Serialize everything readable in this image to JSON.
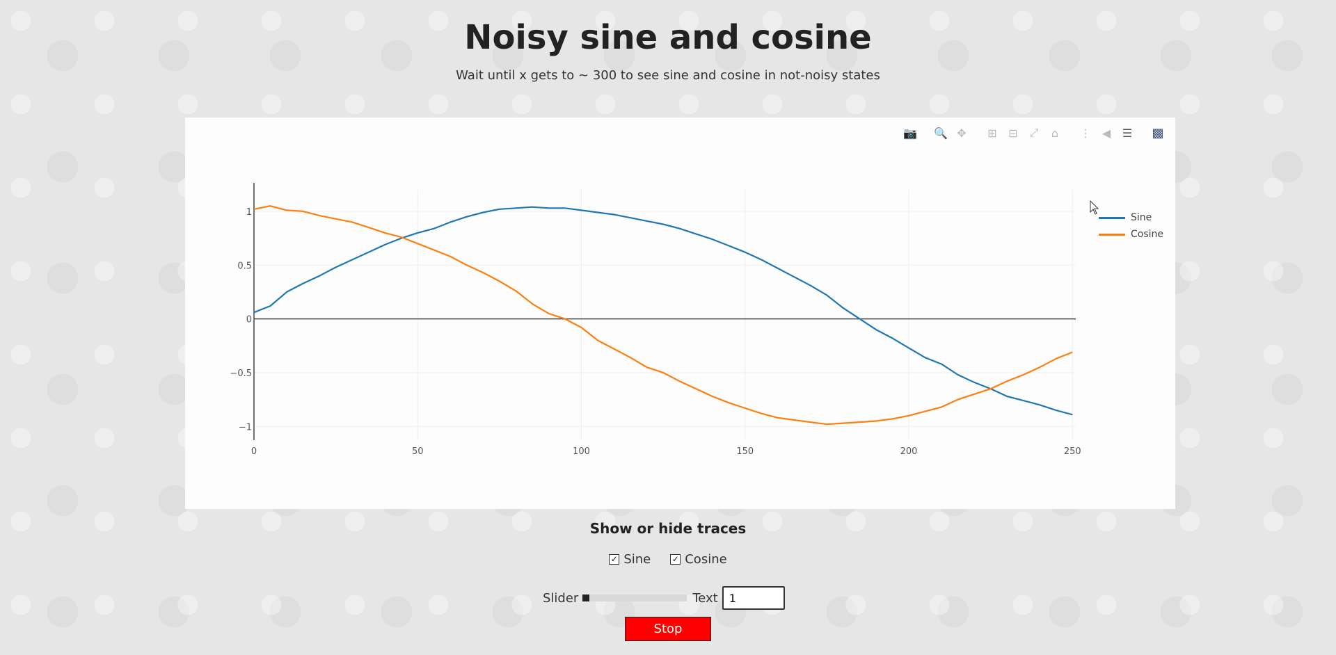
{
  "page": {
    "title": "Noisy sine and cosine",
    "subtitle": "Wait until x gets to ~ 300 to see sine and cosine in not-noisy states"
  },
  "modebar": {
    "icons": [
      "camera-icon",
      "zoom-icon",
      "pan-icon",
      "zoom-in-icon",
      "zoom-out-icon",
      "autoscale-icon",
      "reset-axes-icon",
      "spike-lines-icon",
      "hover-closest-icon",
      "hover-compare-icon",
      "plotly-logo-icon"
    ]
  },
  "chart_data": {
    "type": "line",
    "title": "",
    "xlabel": "",
    "ylabel": "",
    "xlim": [
      0,
      251
    ],
    "ylim": [
      -1.05,
      1.2
    ],
    "x_ticks": [
      0,
      50,
      100,
      150,
      200,
      250
    ],
    "y_ticks": [
      -1,
      -0.5,
      0,
      0.5,
      1
    ],
    "x_tick_labels": [
      "0",
      "50",
      "100",
      "150",
      "200",
      "250"
    ],
    "y_tick_labels": [
      "−1",
      "−0.5",
      "0",
      "0.5",
      "1"
    ],
    "grid": true,
    "legend_position": "top-right",
    "series": [
      {
        "name": "Sine",
        "color": "#1f77b4",
        "x": [
          0,
          5,
          10,
          15,
          20,
          25,
          30,
          35,
          40,
          45,
          50,
          55,
          60,
          65,
          70,
          75,
          80,
          85,
          90,
          95,
          100,
          105,
          110,
          115,
          120,
          125,
          130,
          135,
          140,
          145,
          150,
          155,
          160,
          165,
          170,
          175,
          180,
          185,
          190,
          195,
          200,
          205,
          210,
          215,
          220,
          225,
          230,
          235,
          240,
          245,
          250
        ],
        "values": [
          0.06,
          0.12,
          0.25,
          0.33,
          0.4,
          0.48,
          0.55,
          0.62,
          0.69,
          0.75,
          0.8,
          0.84,
          0.9,
          0.95,
          0.99,
          1.02,
          1.03,
          1.04,
          1.03,
          1.03,
          1.01,
          0.99,
          0.97,
          0.94,
          0.91,
          0.88,
          0.84,
          0.79,
          0.74,
          0.68,
          0.62,
          0.55,
          0.47,
          0.39,
          0.31,
          0.22,
          0.1,
          0.0,
          -0.1,
          -0.18,
          -0.27,
          -0.36,
          -0.42,
          -0.52,
          -0.59,
          -0.65,
          -0.72,
          -0.76,
          -0.8,
          -0.85,
          -0.89
        ]
      },
      {
        "name": "Cosine",
        "color": "#ff7f0e",
        "x": [
          0,
          5,
          10,
          15,
          20,
          25,
          30,
          35,
          40,
          45,
          50,
          55,
          60,
          65,
          70,
          75,
          80,
          85,
          90,
          95,
          100,
          105,
          110,
          115,
          120,
          125,
          130,
          135,
          140,
          145,
          150,
          155,
          160,
          165,
          170,
          175,
          180,
          185,
          190,
          195,
          200,
          205,
          210,
          215,
          220,
          225,
          230,
          235,
          240,
          245,
          250
        ],
        "values": [
          1.02,
          1.05,
          1.01,
          1.0,
          0.96,
          0.93,
          0.9,
          0.85,
          0.8,
          0.76,
          0.7,
          0.64,
          0.58,
          0.5,
          0.43,
          0.35,
          0.26,
          0.14,
          0.05,
          0.0,
          -0.08,
          -0.2,
          -0.28,
          -0.36,
          -0.45,
          -0.5,
          -0.58,
          -0.65,
          -0.72,
          -0.78,
          -0.83,
          -0.88,
          -0.92,
          -0.94,
          -0.96,
          -0.98,
          -0.97,
          -0.96,
          -0.95,
          -0.93,
          -0.9,
          -0.86,
          -0.82,
          -0.75,
          -0.7,
          -0.65,
          -0.58,
          -0.52,
          -0.45,
          -0.37,
          -0.31
        ]
      }
    ]
  },
  "controls": {
    "title": "Show or hide traces",
    "checkboxes": [
      {
        "label": "Sine",
        "checked": true
      },
      {
        "label": "Cosine",
        "checked": true
      }
    ],
    "slider_label": "Slider",
    "slider_value": 0,
    "text_label": "Text",
    "text_value": "1",
    "stop_label": "Stop"
  }
}
